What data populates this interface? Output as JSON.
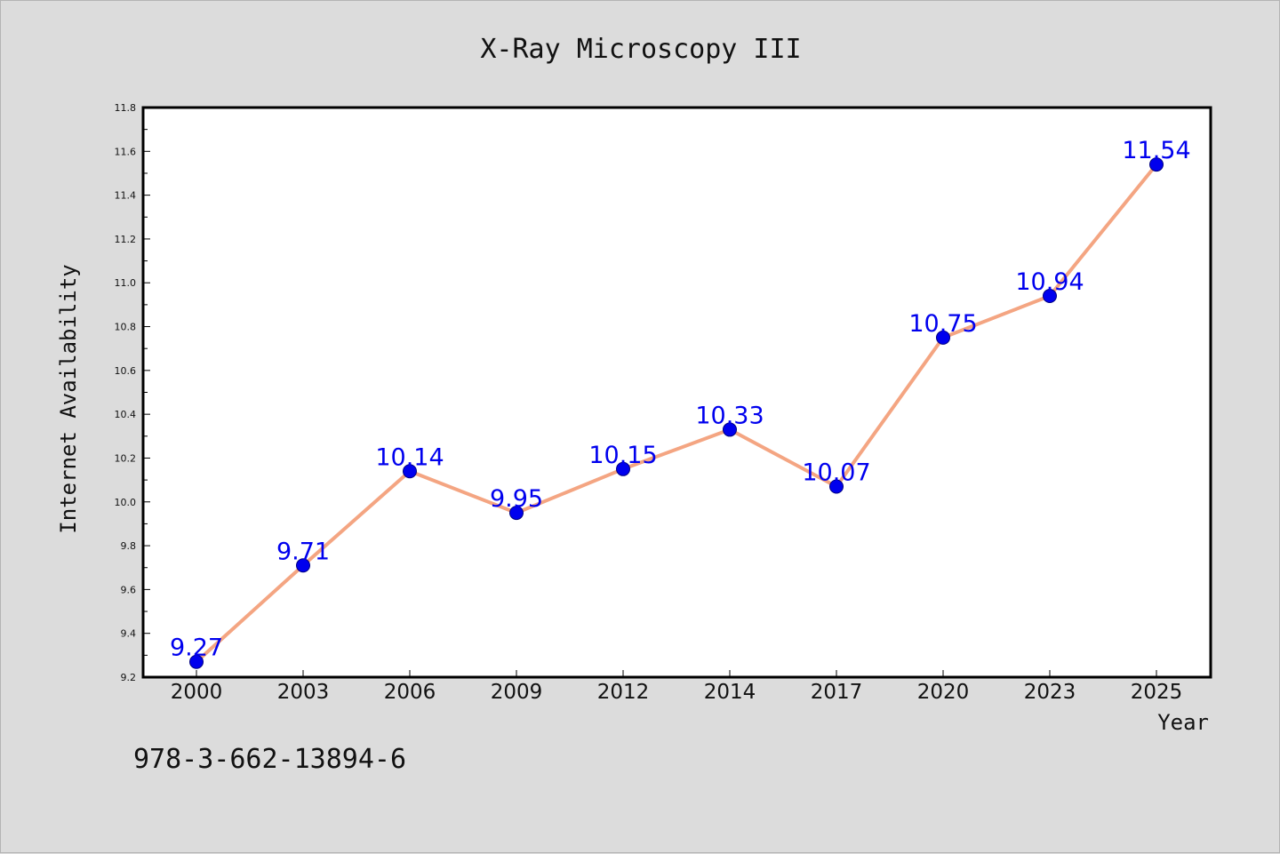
{
  "chart_data": {
    "type": "line",
    "title": "X-Ray Microscopy III",
    "xlabel": "Year",
    "ylabel": "Internet Availability",
    "categories": [
      "2000",
      "2003",
      "2006",
      "2009",
      "2012",
      "2014",
      "2017",
      "2020",
      "2023",
      "2025"
    ],
    "series": [
      {
        "values": [
          9.27,
          9.71,
          10.14,
          9.95,
          10.15,
          10.33,
          10.07,
          10.75,
          10.94,
          11.54
        ],
        "data_labels": [
          "9.27",
          "9.71",
          "10.14",
          "9.95",
          "10.15",
          "10.33",
          "10.07",
          "10.75",
          "10.94",
          "11.54"
        ],
        "line_color": "#f4a582",
        "marker_color": "#0000ee",
        "label_color": "#0000ee"
      }
    ],
    "ylim": [
      9.2,
      11.8
    ],
    "y_ticks": [
      "9.2",
      "9.4",
      "9.6",
      "9.8",
      "10.0",
      "10.2",
      "10.4",
      "10.6",
      "10.8",
      "11.0",
      "11.2",
      "11.4",
      "11.6",
      "11.8"
    ],
    "grid": false,
    "legend": "none"
  },
  "footer": {
    "isbn": "978-3-662-13894-6"
  },
  "colors": {
    "background": "#dcdcdc",
    "plot_background": "#ffffff",
    "axis": "#000000"
  }
}
